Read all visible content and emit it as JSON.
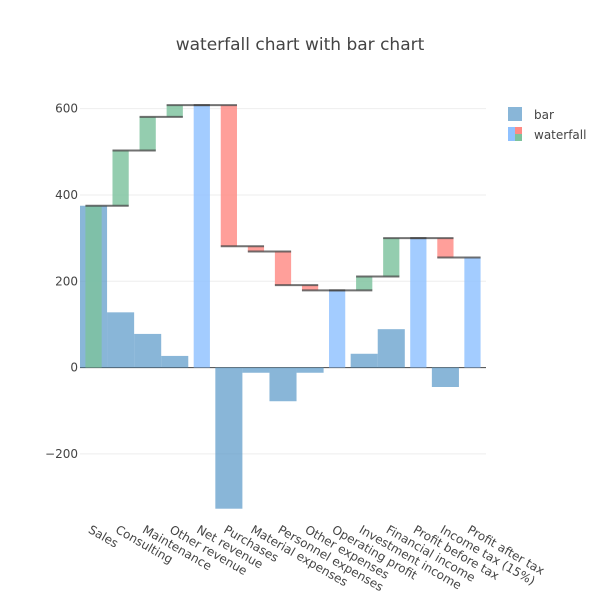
{
  "chart_data": {
    "title": "waterfall chart with bar chart",
    "type": "bar",
    "xlabel": "",
    "ylabel": "",
    "ylim": [
      -330,
      620
    ],
    "yticks": [
      -200,
      0,
      200,
      400,
      600
    ],
    "grid": true,
    "legend_position": "top-right",
    "categories": [
      "Sales",
      "Consulting",
      "Maintenance",
      "Other revenue",
      "Net revenue",
      "Purchases",
      "Material expenses",
      "Personnel expenses",
      "Other expenses",
      "Operating profit",
      "Investment income",
      "Financial income",
      "Profit before tax",
      "Income tax (15%)",
      "Profit after tax"
    ],
    "series": [
      {
        "name": "bar",
        "type": "bar",
        "values": [
          375,
          128,
          78,
          27,
          0,
          -327,
          -12,
          -78,
          -12,
          0,
          32,
          89,
          0,
          -45,
          0
        ]
      },
      {
        "name": "waterfall",
        "type": "waterfall",
        "measures": [
          "relative",
          "relative",
          "relative",
          "relative",
          "total",
          "relative",
          "relative",
          "relative",
          "relative",
          "total",
          "relative",
          "relative",
          "total",
          "relative",
          "total"
        ],
        "values": [
          375,
          128,
          78,
          27,
          608,
          -327,
          -12,
          -78,
          -12,
          179,
          32,
          89,
          300,
          -45,
          255
        ]
      }
    ],
    "colors": {
      "bar": "#5b9ac9",
      "increasing": "#7dc29d",
      "decreasing": "#ff8a84",
      "total": "#8fc1ff",
      "connector": "#444444",
      "axis": "#444444",
      "grid": "#eeeeee",
      "title": "#444444"
    }
  }
}
